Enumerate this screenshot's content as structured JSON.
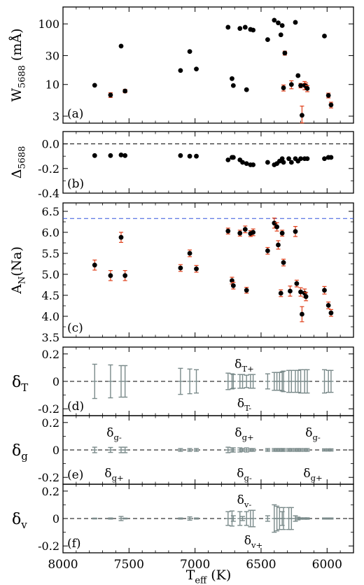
{
  "chart_data": [
    {
      "type": "scatter",
      "panel_label": "(a)",
      "ylabel": "W5688 (mÅ)",
      "xlabel": "",
      "scale": "log",
      "xlim": [
        8000,
        5800
      ],
      "ylim": [
        2.3,
        190
      ],
      "yticks": [
        3,
        10,
        30,
        100
      ],
      "yticklabels": [
        "3",
        "10",
        "30",
        "100"
      ],
      "series": [
        {
          "values": [
            [
              7760,
              9.7
            ],
            [
              7640,
              6.7
            ],
            [
              7560,
              43
            ],
            [
              7530,
              7.8
            ],
            [
              7110,
              17
            ],
            [
              7040,
              35
            ],
            [
              6990,
              18
            ],
            [
              6750,
              88
            ],
            [
              6720,
              12.5
            ],
            [
              6710,
              9.6
            ],
            [
              6660,
              84
            ],
            [
              6620,
              88
            ],
            [
              6610,
              8.2
            ],
            [
              6580,
              81
            ],
            [
              6560,
              79
            ],
            [
              6450,
              55
            ],
            [
              6400,
              115
            ],
            [
              6370,
              104
            ],
            [
              6350,
              66
            ],
            [
              6340,
              94
            ],
            [
              6330,
              8.8
            ],
            [
              6320,
              33
            ],
            [
              6270,
              10
            ],
            [
              6240,
              106
            ],
            [
              6220,
              14
            ],
            [
              6200,
              9.6
            ],
            [
              6190,
              3.1
            ],
            [
              6170,
              9.7
            ],
            [
              6160,
              9.4
            ],
            [
              6150,
              8.6
            ],
            [
              6020,
              63
            ],
            [
              5990,
              6.6
            ],
            [
              5970,
              4.6
            ]
          ],
          "err": [
            null,
            0.6,
            null,
            0.5,
            null,
            null,
            null,
            null,
            null,
            null,
            null,
            null,
            null,
            null,
            null,
            null,
            null,
            null,
            null,
            null,
            1.0,
            2.5,
            1.5,
            null,
            null,
            0.8,
            1.3,
            1.5,
            1.2,
            1.0,
            null,
            0.6,
            0.5
          ]
        }
      ]
    },
    {
      "type": "scatter",
      "panel_label": "(b)",
      "ylabel": "Δ5688",
      "xlabel": "",
      "xlim": [
        8000,
        5800
      ],
      "ylim": [
        -0.4,
        0.1
      ],
      "yticks": [
        0.0,
        -0.2,
        -0.4
      ],
      "yticklabels": [
        "0.0",
        "-0.2",
        "-0.4"
      ],
      "reference_line": 0.0,
      "series": [
        {
          "values": [
            [
              7760,
              -0.095
            ],
            [
              7640,
              -0.095
            ],
            [
              7560,
              -0.09
            ],
            [
              7530,
              -0.095
            ],
            [
              7110,
              -0.095
            ],
            [
              7040,
              -0.1
            ],
            [
              6990,
              -0.1
            ],
            [
              6750,
              -0.13
            ],
            [
              6720,
              -0.11
            ],
            [
              6710,
              -0.11
            ],
            [
              6660,
              -0.13
            ],
            [
              6640,
              -0.15
            ],
            [
              6610,
              -0.16
            ],
            [
              6580,
              -0.17
            ],
            [
              6560,
              -0.17
            ],
            [
              6450,
              -0.15
            ],
            [
              6400,
              -0.17
            ],
            [
              6380,
              -0.16
            ],
            [
              6360,
              -0.14
            ],
            [
              6340,
              -0.12
            ],
            [
              6330,
              -0.15
            ],
            [
              6290,
              -0.12
            ],
            [
              6270,
              -0.15
            ],
            [
              6240,
              -0.12
            ],
            [
              6220,
              -0.14
            ],
            [
              6200,
              -0.12
            ],
            [
              6170,
              -0.12
            ],
            [
              6150,
              -0.12
            ],
            [
              6020,
              -0.12
            ],
            [
              5990,
              -0.11
            ],
            [
              5970,
              -0.11
            ]
          ]
        }
      ]
    },
    {
      "type": "scatter",
      "panel_label": "(c)",
      "ylabel": "AN(Na)",
      "xlabel": "",
      "xlim": [
        8000,
        5800
      ],
      "ylim": [
        3.5,
        6.7
      ],
      "yticks": [
        3.5,
        4.0,
        4.5,
        5.0,
        5.5,
        6.0,
        6.5
      ],
      "yticklabels": [
        "3.5",
        "4.0",
        "4.5",
        "5.0",
        "5.5",
        "6.0",
        "6.5"
      ],
      "reference_line": 6.33,
      "series": [
        {
          "values": [
            [
              7760,
              5.22
            ],
            [
              7640,
              4.97
            ],
            [
              7560,
              5.88
            ],
            [
              7530,
              4.97
            ],
            [
              7110,
              5.15
            ],
            [
              7040,
              5.5
            ],
            [
              6990,
              5.13
            ],
            [
              6750,
              6.03
            ],
            [
              6720,
              4.85
            ],
            [
              6710,
              4.73
            ],
            [
              6660,
              5.98
            ],
            [
              6620,
              6.07
            ],
            [
              6610,
              4.62
            ],
            [
              6580,
              5.97
            ],
            [
              6560,
              6.0
            ],
            [
              6450,
              5.56
            ],
            [
              6400,
              6.22
            ],
            [
              6380,
              6.13
            ],
            [
              6370,
              5.7
            ],
            [
              6350,
              4.55
            ],
            [
              6340,
              5.98
            ],
            [
              6330,
              5.28
            ],
            [
              6280,
              4.6
            ],
            [
              6240,
              6.02
            ],
            [
              6230,
              4.78
            ],
            [
              6200,
              4.58
            ],
            [
              6190,
              4.05
            ],
            [
              6170,
              4.55
            ],
            [
              6160,
              4.47
            ],
            [
              6020,
              4.62
            ],
            [
              5990,
              4.26
            ],
            [
              5970,
              4.08
            ]
          ],
          "err": [
            0.12,
            0.12,
            0.12,
            0.12,
            0.08,
            0.08,
            0.08,
            0.07,
            0.08,
            0.08,
            0.07,
            0.08,
            0.07,
            0.07,
            0.08,
            0.08,
            0.12,
            0.1,
            0.1,
            0.08,
            0.07,
            0.08,
            0.12,
            0.12,
            0.08,
            0.1,
            0.18,
            0.1,
            0.1,
            0.09,
            0.08,
            0.08
          ]
        }
      ]
    },
    {
      "type": "scatter",
      "panel_label": "(d)",
      "ylabel": "δT",
      "xlabel": "",
      "xlim": [
        8000,
        5800
      ],
      "ylim": [
        -0.25,
        0.25
      ],
      "yticks": [
        0.2,
        0.0,
        -0.2
      ],
      "yticklabels": [
        "0.2",
        "0",
        "-0.2"
      ],
      "reference_line": 0.0,
      "annotations": [
        "δT+",
        "δT-"
      ],
      "series": [
        {
          "values": [
            [
              7760,
              0.125
            ],
            [
              7640,
              0.12
            ],
            [
              7560,
              0.115
            ],
            [
              7530,
              0.115
            ],
            [
              7110,
              0.095
            ],
            [
              7040,
              0.09
            ],
            [
              6990,
              0.085
            ],
            [
              6750,
              0.06
            ],
            [
              6720,
              0.055
            ],
            [
              6710,
              0.05
            ],
            [
              6660,
              0.05
            ],
            [
              6640,
              0.05
            ],
            [
              6610,
              0.045
            ],
            [
              6580,
              0.05
            ],
            [
              6560,
              0.05
            ],
            [
              6450,
              0.055
            ],
            [
              6400,
              0.065
            ],
            [
              6380,
              0.065
            ],
            [
              6360,
              0.065
            ],
            [
              6340,
              0.07
            ],
            [
              6330,
              0.075
            ],
            [
              6290,
              0.08
            ],
            [
              6270,
              0.08
            ],
            [
              6240,
              0.08
            ],
            [
              6220,
              0.08
            ],
            [
              6200,
              0.085
            ],
            [
              6170,
              0.085
            ],
            [
              6150,
              0.085
            ],
            [
              6020,
              0.085
            ],
            [
              5990,
              0.08
            ],
            [
              5970,
              0.08
            ]
          ]
        }
      ]
    },
    {
      "type": "scatter",
      "panel_label": "(e)",
      "ylabel": "δg",
      "xlabel": "",
      "xlim": [
        8000,
        5800
      ],
      "ylim": [
        -0.25,
        0.25
      ],
      "yticks": [
        0.2,
        0.0,
        -0.2
      ],
      "yticklabels": [
        "0.2",
        "0",
        "-0.2"
      ],
      "reference_line": 0.0,
      "annotations": [
        "δg-",
        "δg+",
        "δg+",
        "δg-",
        "δg-",
        "δg+"
      ],
      "series": [
        {
          "values": [
            [
              7760,
              0.02
            ],
            [
              7640,
              0.018
            ],
            [
              7560,
              0.02
            ],
            [
              7530,
              0.02
            ],
            [
              7110,
              0.01
            ],
            [
              7040,
              0.01
            ],
            [
              6990,
              0.01
            ],
            [
              6750,
              0.02
            ],
            [
              6720,
              0.015
            ],
            [
              6710,
              0.015
            ],
            [
              6660,
              0.015
            ],
            [
              6640,
              0.01
            ],
            [
              6610,
              0.015
            ],
            [
              6580,
              0.01
            ],
            [
              6560,
              0.01
            ],
            [
              6450,
              0.01
            ],
            [
              6400,
              0.01
            ],
            [
              6380,
              0.01
            ],
            [
              6360,
              0.01
            ],
            [
              6340,
              0.01
            ],
            [
              6330,
              0.01
            ],
            [
              6290,
              0.01
            ],
            [
              6270,
              0.01
            ],
            [
              6240,
              0.01
            ],
            [
              6220,
              0.01
            ],
            [
              6200,
              0.01
            ],
            [
              6170,
              0.01
            ],
            [
              6150,
              0.01
            ],
            [
              6020,
              0.008
            ],
            [
              5990,
              0.008
            ],
            [
              5970,
              0.008
            ]
          ]
        }
      ]
    },
    {
      "type": "scatter",
      "panel_label": "(f)",
      "ylabel": "δv",
      "xlabel": "Teff (K)",
      "xlim": [
        8000,
        5800
      ],
      "ylim": [
        -0.25,
        0.25
      ],
      "yticks": [
        0.2,
        0.0,
        -0.2
      ],
      "yticklabels": [
        "0.2",
        "0",
        "-0.2"
      ],
      "xticks": [
        8000,
        7500,
        7000,
        6500,
        6000
      ],
      "xticklabels": [
        "8000",
        "7500",
        "7000",
        "6500",
        "6000"
      ],
      "reference_line": 0.0,
      "annotations": [
        "δv-",
        "δv+"
      ],
      "series": [
        {
          "values": [
            [
              7760,
              0.003
            ],
            [
              7640,
              0.004
            ],
            [
              7560,
              0.015
            ],
            [
              7530,
              0.003
            ],
            [
              7110,
              0.004
            ],
            [
              7040,
              0.012
            ],
            [
              6990,
              0.004
            ],
            [
              6750,
              0.05
            ],
            [
              6720,
              0.055
            ],
            [
              6710,
              0.02
            ],
            [
              6660,
              0.05
            ],
            [
              6640,
              0.015
            ],
            [
              6610,
              0.05
            ],
            [
              6580,
              0.06
            ],
            [
              6560,
              0.06
            ],
            [
              6450,
              0.02
            ],
            [
              6400,
              0.1
            ],
            [
              6380,
              0.09
            ],
            [
              6360,
              0.08
            ],
            [
              6340,
              0.05
            ],
            [
              6330,
              0.08
            ],
            [
              6290,
              0.08
            ],
            [
              6270,
              0.08
            ],
            [
              6240,
              0.02
            ],
            [
              6220,
              0.01
            ],
            [
              6200,
              0.005
            ],
            [
              6170,
              0.005
            ],
            [
              6150,
              0.005
            ],
            [
              6020,
              0.004
            ],
            [
              5990,
              0.004
            ],
            [
              5970,
              0.004
            ]
          ]
        }
      ]
    }
  ]
}
